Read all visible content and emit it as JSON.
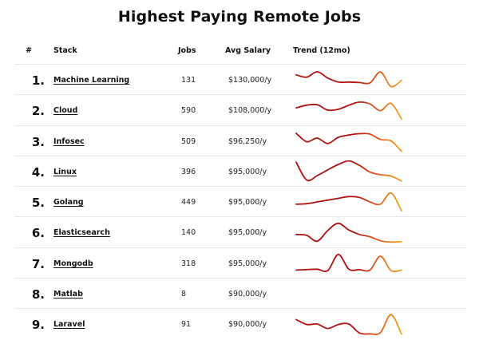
{
  "title": "Highest Paying Remote Jobs",
  "columns": {
    "rank": "#",
    "stack": "Stack",
    "jobs": "Jobs",
    "salary": "Avg Salary",
    "trend": "Trend (12mo)"
  },
  "colors": {
    "trend_start": "#b01010",
    "trend_mid": "#e0551c",
    "trend_end": "#f5a623"
  },
  "rows": [
    {
      "rank": "1.",
      "stack": "Machine Learning",
      "jobs": "131",
      "salary": "$130,000/y",
      "trend": [
        0.72,
        0.62,
        0.86,
        0.58,
        0.4,
        0.4,
        0.38,
        0.36,
        0.85,
        0.2,
        0.48
      ]
    },
    {
      "rank": "2.",
      "stack": "Cloud",
      "jobs": "590",
      "salary": "$108,000/y",
      "trend": [
        0.6,
        0.72,
        0.74,
        0.5,
        0.54,
        0.72,
        0.86,
        0.78,
        0.48,
        0.8,
        0.1
      ]
    },
    {
      "rank": "3.",
      "stack": "Infosec",
      "jobs": "509",
      "salary": "$96,250/y",
      "trend": [
        0.86,
        0.48,
        0.64,
        0.4,
        0.68,
        0.78,
        0.84,
        0.82,
        0.58,
        0.52,
        0.05
      ]
    },
    {
      "rank": "4.",
      "stack": "Linux",
      "jobs": "396",
      "salary": "$95,000/y",
      "trend": [
        0.92,
        0.12,
        0.32,
        0.58,
        0.82,
        0.98,
        0.78,
        0.48,
        0.36,
        0.3,
        0.08
      ]
    },
    {
      "rank": "5.",
      "stack": "Golang",
      "jobs": "449",
      "salary": "$95,000/y",
      "trend": [
        0.4,
        0.42,
        0.5,
        0.58,
        0.66,
        0.74,
        0.7,
        0.5,
        0.4,
        0.9,
        0.1
      ]
    },
    {
      "rank": "6.",
      "stack": "Elasticsearch",
      "jobs": "140",
      "salary": "$95,000/y",
      "trend": [
        0.4,
        0.36,
        0.1,
        0.58,
        0.9,
        0.6,
        0.4,
        0.3,
        0.12,
        0.06,
        0.08
      ]
    },
    {
      "rank": "7.",
      "stack": "Mongodb",
      "jobs": "318",
      "salary": "$95,000/y",
      "trend": [
        0.2,
        0.22,
        0.24,
        0.18,
        0.9,
        0.24,
        0.22,
        0.2,
        0.82,
        0.18,
        0.2
      ]
    },
    {
      "rank": "8.",
      "stack": "Matlab",
      "jobs": "8",
      "salary": "$90,000/y",
      "trend": []
    },
    {
      "rank": "9.",
      "stack": "Laravel",
      "jobs": "91",
      "salary": "$90,000/y",
      "trend": [
        0.7,
        0.48,
        0.5,
        0.3,
        0.48,
        0.5,
        0.1,
        0.06,
        0.12,
        0.92,
        0.05
      ]
    }
  ]
}
